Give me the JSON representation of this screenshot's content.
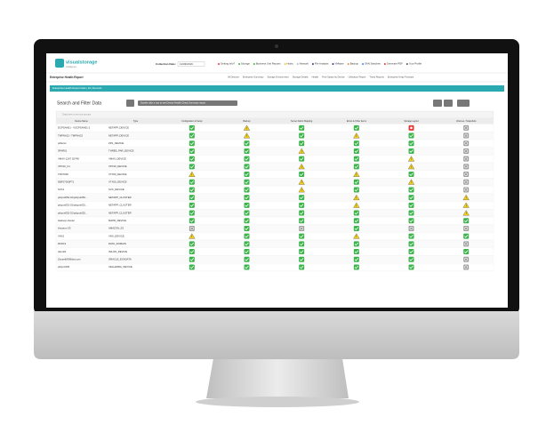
{
  "header": {
    "logo": "visualstorage",
    "logo_sub": "intelligence",
    "collection_date_label": "Collection Date:",
    "collection_date": "11/03/2016",
    "nav": [
      "Getting Info?",
      "Storage",
      "Business Unit Reports",
      "Hosts",
      "Network",
      "File Analysis",
      "VMware",
      "Backup",
      "SAN Switches",
      "Generate PDF",
      "Your Profile"
    ]
  },
  "subheader": {
    "title": "Enterprise Health Report",
    "nav": [
      "All Devices",
      "Enterprise Summary",
      "Storage Environment",
      "Storage Details",
      "Health",
      "Free Space by Device",
      "Utilization Report",
      "Trend Reports",
      "Enterprise Array Forecast"
    ]
  },
  "panel": {
    "title": "Enterprise Health Report Data | 19 | Records",
    "search_title": "Search and Filter Data",
    "hint": "Double click a row to see Device Health Check Summary report",
    "group_hint": "Drag here to set row groups"
  },
  "table": {
    "columns": [
      "Device Name",
      "Type",
      "Configuration & Setup",
      "Backup",
      "Server Fabric Mapping",
      "Errors & Other Items",
      "Storage Layout",
      "Volumes / Snapshots"
    ],
    "rows": [
      [
        "DCPSAN01 - VSCPSAN01-2",
        "NETAPP_DEVICE"
      ],
      [
        "TMPNA22 / TMPNA22",
        "NETAPP_DEVICE"
      ],
      [
        "pdfscs1",
        "ZFS_DEVICE"
      ],
      [
        "3PAR01",
        "THREE_PAR_DEVICE"
      ],
      [
        "VMAX-1267 02748",
        "VMAX_DEVICE"
      ],
      [
        "VPX10_C1",
        "VPX10_DEVICE"
      ],
      [
        "TRX7000",
        "VTX00_DEVICE"
      ],
      [
        "DBPJ7000FT1",
        "VTX00_DEVICE"
      ],
      [
        "SVC1",
        "SVC_DEVICE"
      ],
      [
        "pdcpot052-01/pdcpot052...",
        "NETAPP_CLUSTER"
      ],
      [
        "pdcpot051-01/pdcpot051...",
        "NETAPP_CLUSTER"
      ],
      [
        "pdcpot052-01/pdcpot052...",
        "NETAPP_CLUSTER"
      ],
      [
        "Hadoop-cluster",
        "MAPR_DEVICE"
      ],
      [
        "Amazon S3",
        "AMAZON_S3"
      ],
      [
        "VNX1",
        "VNX_DEVICE"
      ],
      [
        "DFDC1",
        "DATA_DOMAIN"
      ],
      [
        "isilon01",
        "ISILON_DEVICE"
      ],
      [
        "ZeusetMGMdsv.com",
        "ORACLE_EXADATA"
      ],
      [
        "pdcpot303",
        "CELLERRA_DEVICE"
      ]
    ],
    "status": [
      [
        "#3cb44b",
        "#f2cf1d",
        "#3cb44b",
        "#3cb44b",
        "#e53935",
        "#9e9e9e"
      ],
      [
        "#3cb44b",
        "#f2cf1d",
        "#3cb44b",
        "#f2cf1d",
        "#3cb44b",
        "#9e9e9e"
      ],
      [
        "#3cb44b",
        "#3cb44b",
        "#3cb44b",
        "#3cb44b",
        "#3cb44b",
        "#9e9e9e"
      ],
      [
        "#3cb44b",
        "#3cb44b",
        "#f2cf1d",
        "#3cb44b",
        "#3cb44b",
        "#9e9e9e"
      ],
      [
        "#3cb44b",
        "#3cb44b",
        "#3cb44b",
        "#3cb44b",
        "#f2cf1d",
        "#9e9e9e"
      ],
      [
        "#3cb44b",
        "#3cb44b",
        "#f2cf1d",
        "#3cb44b",
        "#f2cf1d",
        "#9e9e9e"
      ],
      [
        "#f2cf1d",
        "#3cb44b",
        "#3cb44b",
        "#f2cf1d",
        "#3cb44b",
        "#9e9e9e"
      ],
      [
        "#3cb44b",
        "#3cb44b",
        "#f2cf1d",
        "#3cb44b",
        "#f2cf1d",
        "#9e9e9e"
      ],
      [
        "#3cb44b",
        "#3cb44b",
        "#f2cf1d",
        "#3cb44b",
        "#3cb44b",
        "#9e9e9e"
      ],
      [
        "#3cb44b",
        "#3cb44b",
        "#3cb44b",
        "#f2cf1d",
        "#3cb44b",
        "#f2cf1d"
      ],
      [
        "#3cb44b",
        "#3cb44b",
        "#3cb44b",
        "#f2cf1d",
        "#3cb44b",
        "#f2cf1d"
      ],
      [
        "#3cb44b",
        "#3cb44b",
        "#3cb44b",
        "#3cb44b",
        "#3cb44b",
        "#f2cf1d"
      ],
      [
        "#3cb44b",
        "#3cb44b",
        "#3cb44b",
        "#3cb44b",
        "#3cb44b",
        "#3cb44b"
      ],
      [
        "#9e9e9e",
        "#3cb44b",
        "#9e9e9e",
        "#3cb44b",
        "#9e9e9e",
        "#9e9e9e"
      ],
      [
        "#f2cf1d",
        "#3cb44b",
        "#3cb44b",
        "#f2cf1d",
        "#3cb44b",
        "#3cb44b"
      ],
      [
        "#3cb44b",
        "#3cb44b",
        "#3cb44b",
        "#3cb44b",
        "#3cb44b",
        "#9e9e9e"
      ],
      [
        "#3cb44b",
        "#3cb44b",
        "#3cb44b",
        "#3cb44b",
        "#3cb44b",
        "#3cb44b"
      ],
      [
        "#3cb44b",
        "#3cb44b",
        "#3cb44b",
        "#3cb44b",
        "#3cb44b",
        "#9e9e9e"
      ],
      [
        "#3cb44b",
        "#3cb44b",
        "#3cb44b",
        "#3cb44b",
        "#3cb44b",
        "#9e9e9e"
      ]
    ]
  }
}
